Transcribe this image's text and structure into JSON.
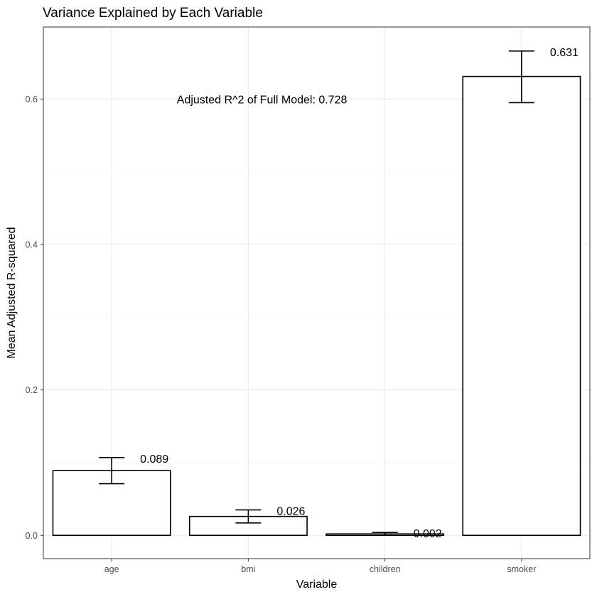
{
  "chart_data": {
    "type": "bar",
    "title": "Variance Explained by Each Variable",
    "xlabel": "Variable",
    "ylabel": "Mean Adjusted R-squared",
    "categories": [
      "age",
      "bmi",
      "children",
      "smoker"
    ],
    "values": [
      0.089,
      0.026,
      0.002,
      0.631
    ],
    "error_low": [
      0.071,
      0.017,
      0.0,
      0.595
    ],
    "error_high": [
      0.107,
      0.035,
      0.004,
      0.666
    ],
    "data_labels": [
      "0.089",
      "0.026",
      "0.002",
      "0.631"
    ],
    "ylim": [
      -0.032,
      0.699
    ],
    "yticks": [
      0.0,
      0.2,
      0.4,
      0.6
    ],
    "ytick_labels": [
      "0.0",
      "0.2",
      "0.4",
      "0.6"
    ],
    "annotation": {
      "text": "Adjusted R^2 of Full Model: 0.728",
      "x": 2.1,
      "y": 0.6
    },
    "grid": true,
    "bar_fill": "#ffffff",
    "bar_outline": "#000000",
    "gridline_color": "#ebebeb"
  }
}
